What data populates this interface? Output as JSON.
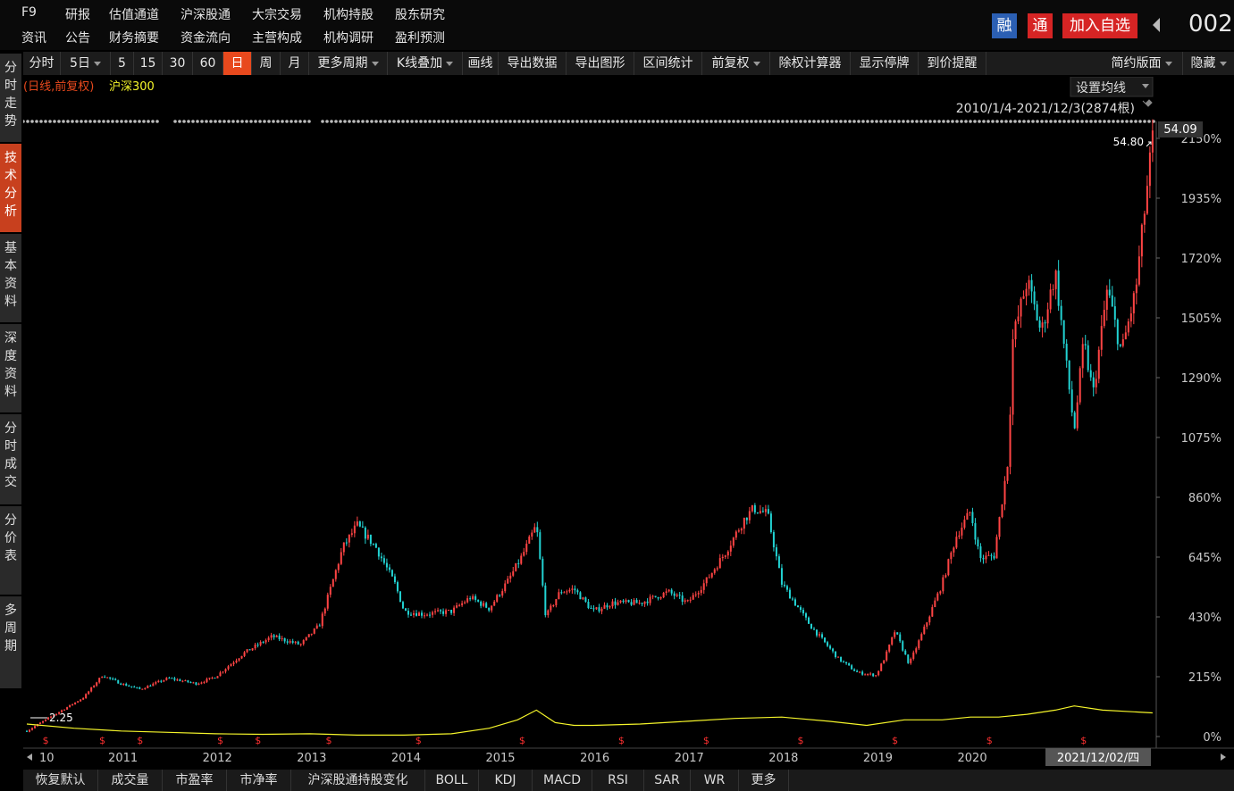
{
  "top_menu": {
    "row1": [
      "F9",
      "研报",
      "估值通道",
      "沪深股通",
      "大宗交易",
      "机构持股",
      "股东研究"
    ],
    "row2": [
      "资讯",
      "公告",
      "财务摘要",
      "资金流向",
      "主营构成",
      "机构调研",
      "盈利预测"
    ],
    "tag_rong": "融",
    "tag_tong": "通",
    "add_watch": "加入自选",
    "stock_code": "002"
  },
  "left_tabs": [
    "分时走势",
    "技术分析",
    "基本资料",
    "深度资料",
    "分时成交",
    "分价表",
    "多周期"
  ],
  "toolbar": {
    "items": [
      "分时",
      "5日",
      "5",
      "15",
      "30",
      "60",
      "日",
      "周",
      "月",
      "更多周期",
      "K线叠加",
      "画线",
      "导出数据",
      "导出图形",
      "区间统计",
      "前复权",
      "除权计算器",
      "显示停牌",
      "到价提醒"
    ],
    "simple_layout": "简约版面",
    "hide": "隐藏"
  },
  "chart_header": {
    "mode_label": "(日线,前复权)",
    "overlay_label": "沪深300",
    "ma_settings": "设置均线",
    "range_label": "2010/1/4-2021/12/3(2874根)",
    "current_price": "54.09",
    "high_label": "54.80",
    "low_label": "2.25",
    "cursor_date": "2021/12/02/四"
  },
  "colors": {
    "up": "#ff4444",
    "down": "#22d3d3",
    "overlay": "#f5f52a",
    "accent": "#e8491d",
    "grid": "#303030"
  },
  "bottom_bar": [
    "恢复默认",
    "成交量",
    "市盈率",
    "市净率",
    "沪深股通持股变化",
    "BOLL",
    "KDJ",
    "MACD",
    "RSI",
    "SAR",
    "WR",
    "更多"
  ],
  "chart_data": {
    "type": "line",
    "x_labels": [
      "10",
      "2011",
      "2012",
      "2013",
      "2014",
      "2015",
      "2016",
      "2017",
      "2018",
      "2019",
      "2020"
    ],
    "y_ticks": [
      "0%",
      "215%",
      "430%",
      "645%",
      "860%",
      "1075%",
      "1290%",
      "1505%",
      "1720%",
      "1935%",
      "2150%"
    ],
    "ylim": [
      0,
      2150
    ],
    "series": [
      {
        "name": "",
        "x": [
          2010.0,
          2010.3,
          2010.6,
          2010.8,
          2011.0,
          2011.2,
          2011.5,
          2011.8,
          2012.0,
          2012.3,
          2012.6,
          2012.9,
          2013.1,
          2013.35,
          2013.5,
          2013.7,
          2013.9,
          2014.0,
          2014.2,
          2014.5,
          2014.7,
          2014.9,
          2015.1,
          2015.25,
          2015.4,
          2015.5,
          2015.65,
          2015.8,
          2016.0,
          2016.2,
          2016.5,
          2016.8,
          2017.0,
          2017.2,
          2017.4,
          2017.6,
          2017.7,
          2017.85,
          2018.0,
          2018.3,
          2018.6,
          2018.8,
          2019.0,
          2019.1,
          2019.2,
          2019.35,
          2019.5,
          2019.7,
          2019.85,
          2020.0,
          2020.1,
          2020.25,
          2020.4,
          2020.45,
          2020.6,
          2020.75,
          2020.9,
          2021.0,
          2021.1,
          2021.2,
          2021.3,
          2021.45,
          2021.6,
          2021.75,
          2021.93
        ],
        "values": [
          20,
          80,
          140,
          220,
          190,
          170,
          210,
          190,
          215,
          300,
          360,
          330,
          400,
          680,
          760,
          680,
          550,
          450,
          440,
          450,
          500,
          460,
          560,
          650,
          760,
          430,
          520,
          530,
          450,
          480,
          480,
          520,
          480,
          560,
          660,
          780,
          820,
          800,
          550,
          400,
          280,
          230,
          220,
          290,
          380,
          260,
          380,
          550,
          720,
          810,
          640,
          650,
          1000,
          1430,
          1640,
          1450,
          1670,
          1380,
          1100,
          1420,
          1230,
          1610,
          1380,
          1600,
          2150
        ]
      },
      {
        "name": "沪深300",
        "x": [
          2010.0,
          2010.5,
          2011.0,
          2011.5,
          2012.0,
          2012.5,
          2013.0,
          2013.5,
          2014.0,
          2014.5,
          2014.9,
          2015.2,
          2015.4,
          2015.6,
          2015.8,
          2016.0,
          2016.5,
          2017.0,
          2017.5,
          2018.0,
          2018.5,
          2018.9,
          2019.3,
          2019.7,
          2020.0,
          2020.3,
          2020.6,
          2020.9,
          2021.1,
          2021.4,
          2021.93
        ],
        "values": [
          45,
          30,
          20,
          15,
          10,
          8,
          10,
          5,
          5,
          10,
          30,
          60,
          95,
          50,
          40,
          40,
          45,
          55,
          65,
          70,
          55,
          40,
          60,
          60,
          70,
          70,
          80,
          95,
          110,
          95,
          85
        ]
      }
    ]
  }
}
